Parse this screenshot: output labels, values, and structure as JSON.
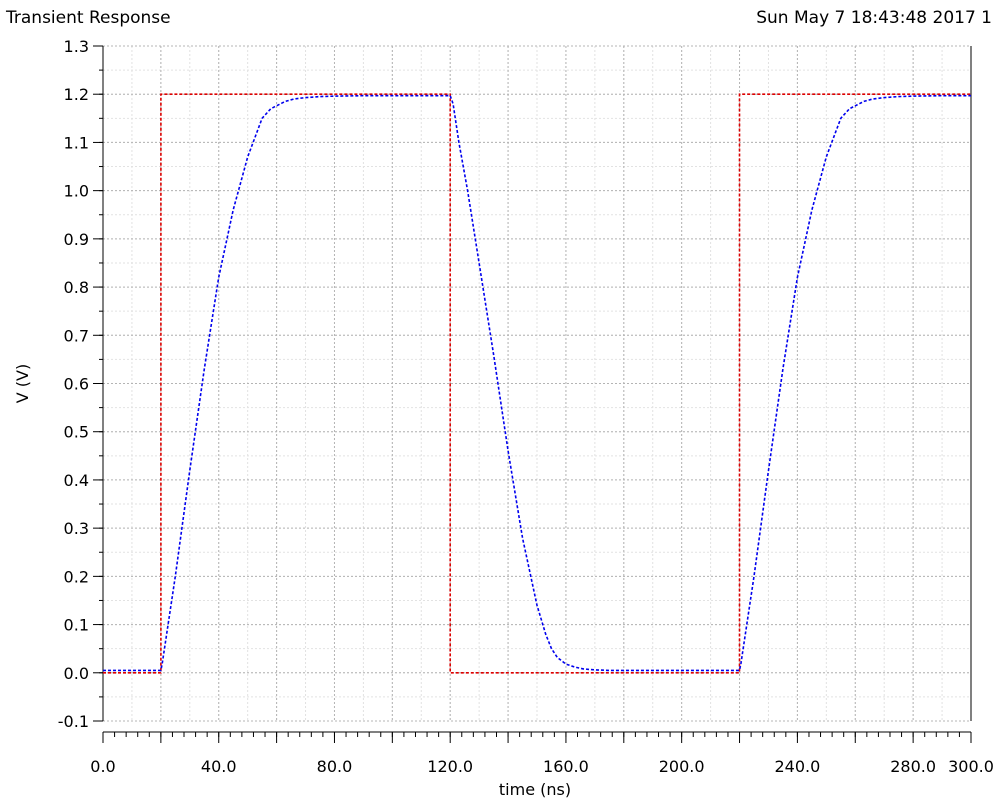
{
  "header": {
    "title": "Transient Response",
    "timestamp": "Sun May 7 18:43:48 2017 1"
  },
  "chart_data": {
    "type": "line",
    "title": "Transient Response",
    "xlabel": "time (ns)",
    "ylabel": "V (V)",
    "xlim": [
      0,
      300
    ],
    "ylim": [
      -0.1,
      1.3
    ],
    "xticks": [
      0,
      40,
      80,
      120,
      160,
      200,
      240,
      280,
      300
    ],
    "xtick_labels": [
      "0.0",
      "40.0",
      "80.0",
      "120.0",
      "160.0",
      "200.0",
      "240.0",
      "280.0",
      "300.0"
    ],
    "yticks": [
      -0.1,
      0.0,
      0.1,
      0.2,
      0.3,
      0.4,
      0.5,
      0.6,
      0.7,
      0.8,
      0.9,
      1.0,
      1.1,
      1.2,
      1.3
    ],
    "ytick_labels": [
      "-0.1",
      "0.0",
      "0.1",
      "0.2",
      "0.3",
      "0.4",
      "0.5",
      "0.6",
      "0.7",
      "0.8",
      "0.9",
      "1.0",
      "1.1",
      "1.2",
      "1.3"
    ],
    "grid": true,
    "series": [
      {
        "color": "#dd0000",
        "linestyle": "dashed",
        "x": [
          0,
          20,
          20,
          120,
          120,
          220,
          220,
          300
        ],
        "y": [
          0.0,
          0.0,
          1.2,
          1.2,
          0.0,
          0.0,
          1.2,
          1.2
        ]
      },
      {
        "color": "#0000ee",
        "linestyle": "dashed",
        "x": [
          0,
          20,
          20.5,
          25,
          30,
          35,
          40,
          45,
          50,
          55,
          58,
          60,
          63,
          66,
          70,
          75,
          80,
          90,
          100,
          110,
          115,
          120,
          121,
          123,
          126,
          130,
          135,
          140,
          145,
          150,
          153,
          155,
          157,
          160,
          163,
          166,
          170,
          175,
          180,
          190,
          200,
          210,
          220,
          220.5,
          225,
          230,
          235,
          240,
          245,
          250,
          255,
          258,
          260,
          263,
          266,
          270,
          275,
          280,
          290,
          300
        ],
        "y": [
          0.005,
          0.005,
          0.02,
          0.2,
          0.42,
          0.63,
          0.82,
          0.96,
          1.07,
          1.15,
          1.17,
          1.176,
          1.185,
          1.19,
          1.193,
          1.195,
          1.196,
          1.197,
          1.197,
          1.197,
          1.197,
          1.197,
          1.18,
          1.1,
          1.0,
          0.85,
          0.66,
          0.46,
          0.28,
          0.14,
          0.08,
          0.05,
          0.032,
          0.018,
          0.012,
          0.008,
          0.006,
          0.005,
          0.005,
          0.005,
          0.005,
          0.005,
          0.005,
          0.02,
          0.2,
          0.42,
          0.63,
          0.82,
          0.96,
          1.07,
          1.15,
          1.17,
          1.176,
          1.185,
          1.19,
          1.193,
          1.195,
          1.196,
          1.197,
          1.197
        ]
      }
    ]
  }
}
